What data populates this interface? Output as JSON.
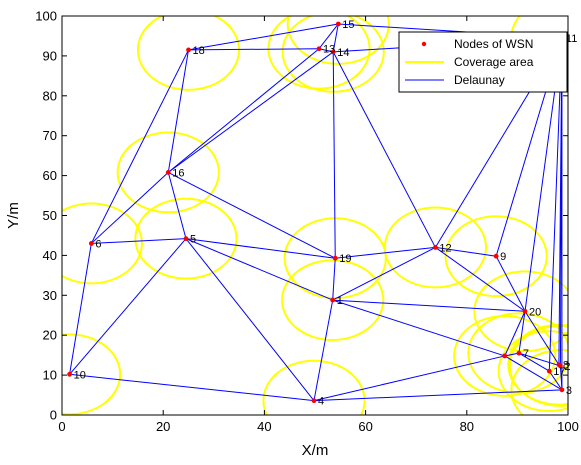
{
  "chart_data": {
    "type": "scatter",
    "xlabel": "X/m",
    "ylabel": "Y/m",
    "xlim": [
      0,
      100
    ],
    "ylim": [
      0,
      100
    ],
    "xticks": [
      0,
      20,
      40,
      60,
      80,
      100
    ],
    "yticks": [
      0,
      10,
      20,
      30,
      40,
      50,
      60,
      70,
      80,
      90,
      100
    ],
    "grid": false,
    "legend_position": "top-right",
    "legend": [
      {
        "label": "Nodes of WSN",
        "color": "#ff0000",
        "kind": "marker"
      },
      {
        "label": "Coverage area",
        "color": "#ffff00",
        "kind": "line"
      },
      {
        "label": "Delaunay",
        "color": "#0000ff",
        "kind": "line"
      }
    ],
    "coverage_radius": 10,
    "nodes": [
      {
        "id": "1",
        "x": 53.5,
        "y": 28.8
      },
      {
        "id": "2",
        "x": 98.5,
        "y": 12.3
      },
      {
        "id": "3",
        "x": 98.8,
        "y": 6.3
      },
      {
        "id": "4",
        "x": 49.8,
        "y": 3.6
      },
      {
        "id": "5",
        "x": 24.5,
        "y": 44.2
      },
      {
        "id": "6",
        "x": 5.8,
        "y": 43.0
      },
      {
        "id": "7",
        "x": 90.3,
        "y": 15.5
      },
      {
        "id": "8",
        "x": 98.2,
        "y": 12.6
      },
      {
        "id": "9",
        "x": 85.8,
        "y": 39.8
      },
      {
        "id": "10",
        "x": 1.5,
        "y": 10.2
      },
      {
        "id": "11",
        "x": 98.8,
        "y": 94.5
      },
      {
        "id": "12",
        "x": 73.8,
        "y": 42.0
      },
      {
        "id": "13",
        "x": 50.8,
        "y": 91.8
      },
      {
        "id": "14",
        "x": 53.6,
        "y": 91.0
      },
      {
        "id": "15",
        "x": 54.6,
        "y": 98.0
      },
      {
        "id": "16",
        "x": 21.0,
        "y": 60.8
      },
      {
        "id": "17",
        "x": 96.3,
        "y": 11.0
      },
      {
        "id": "18",
        "x": 25.0,
        "y": 91.5
      },
      {
        "id": "19",
        "x": 54.0,
        "y": 39.3
      },
      {
        "id": "20",
        "x": 91.5,
        "y": 26.0
      },
      {
        "id": "",
        "x": 87.5,
        "y": 14.8
      }
    ],
    "edges": [
      [
        10,
        6
      ],
      [
        10,
        5
      ],
      [
        10,
        4
      ],
      [
        6,
        5
      ],
      [
        6,
        18
      ],
      [
        6,
        16
      ],
      [
        5,
        16
      ],
      [
        5,
        19
      ],
      [
        5,
        1
      ],
      [
        5,
        4
      ],
      [
        16,
        18
      ],
      [
        16,
        13
      ],
      [
        16,
        14
      ],
      [
        16,
        19
      ],
      [
        18,
        15
      ],
      [
        18,
        13
      ],
      [
        13,
        15
      ],
      [
        13,
        14
      ],
      [
        14,
        15
      ],
      [
        14,
        19
      ],
      [
        14,
        12
      ],
      [
        14,
        11
      ],
      [
        15,
        11
      ],
      [
        19,
        12
      ],
      [
        19,
        1
      ],
      [
        1,
        4
      ],
      [
        1,
        12
      ],
      [
        1,
        20
      ],
      [
        1,
        21
      ],
      [
        12,
        9
      ],
      [
        12,
        20
      ],
      [
        12,
        11
      ],
      [
        9,
        11
      ],
      [
        9,
        20
      ],
      [
        20,
        11
      ],
      [
        20,
        21
      ],
      [
        20,
        7
      ],
      [
        20,
        8
      ],
      [
        4,
        21
      ],
      [
        4,
        3
      ],
      [
        21,
        7
      ],
      [
        21,
        3
      ],
      [
        7,
        17
      ],
      [
        7,
        2
      ],
      [
        2,
        8
      ],
      [
        17,
        3
      ],
      [
        2,
        3
      ],
      [
        8,
        11
      ],
      [
        2,
        11
      ],
      [
        3,
        11
      ],
      [
        17,
        11
      ]
    ]
  }
}
